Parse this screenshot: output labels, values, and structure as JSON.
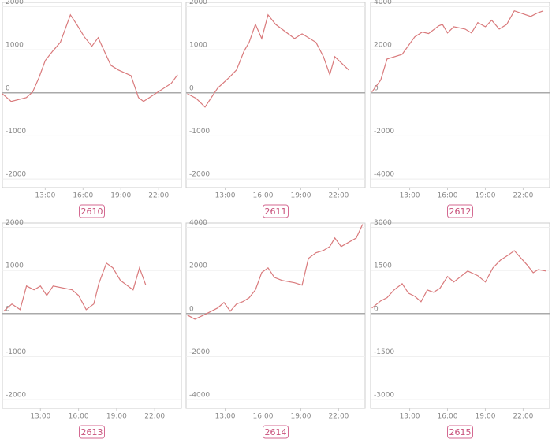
{
  "chart_data": [
    {
      "type": "line",
      "title": "2610",
      "color": "#d97a7c",
      "grid": true,
      "x": [
        9.6,
        10.3,
        11.5,
        12.0,
        12.5,
        13.0,
        13.6,
        14.2,
        15.0,
        15.5,
        16.1,
        16.7,
        17.2,
        18.2,
        18.8,
        19.8,
        20.4,
        20.8,
        23.0,
        23.5
      ],
      "values": [
        -20,
        -200,
        -110,
        20,
        350,
        750,
        970,
        1170,
        1810,
        1590,
        1300,
        1080,
        1280,
        640,
        530,
        400,
        -110,
        -200,
        220,
        420
      ],
      "xlim": [
        9.6,
        23.8
      ],
      "xticks": [
        {
          "value": 13,
          "label": "13:00"
        },
        {
          "value": 16,
          "label": "16:00"
        },
        {
          "value": 19,
          "label": "19:00"
        },
        {
          "value": 22,
          "label": "22:00"
        }
      ],
      "ylim": [
        -2200,
        2100
      ],
      "yticks": [
        2000,
        1000,
        0,
        -1000,
        -2000
      ]
    },
    {
      "type": "line",
      "title": "2611",
      "color": "#d97a7c",
      "grid": true,
      "x": [
        10.0,
        10.7,
        11.4,
        12.4,
        13.3,
        13.9,
        14.5,
        14.9,
        15.4,
        15.9,
        16.4,
        17.0,
        18.5,
        19.1,
        20.2,
        20.8,
        21.3,
        21.7,
        22.8
      ],
      "values": [
        -20,
        -130,
        -330,
        110,
        350,
        530,
        970,
        1170,
        1590,
        1260,
        1810,
        1590,
        1260,
        1370,
        1170,
        840,
        420,
        840,
        530
      ],
      "xlim": [
        9.9,
        24.1
      ],
      "xticks": [
        {
          "value": 13,
          "label": "13:00"
        },
        {
          "value": 16,
          "label": "16:00"
        },
        {
          "value": 19,
          "label": "19:00"
        },
        {
          "value": 22,
          "label": "22:00"
        }
      ],
      "ylim": [
        -2200,
        2100
      ],
      "yticks": [
        2000,
        1000,
        0,
        -1000,
        -2000
      ]
    },
    {
      "type": "line",
      "title": "2612",
      "color": "#d97a7c",
      "grid": true,
      "x": [
        10.0,
        10.7,
        11.2,
        12.4,
        13.4,
        14.0,
        14.5,
        15.3,
        15.6,
        16.0,
        16.5,
        17.4,
        17.9,
        18.4,
        19.0,
        19.5,
        20.1,
        20.7,
        21.3,
        22.6,
        23.1,
        23.6
      ],
      "values": [
        40,
        590,
        1570,
        1790,
        2600,
        2820,
        2750,
        3110,
        3180,
        2780,
        3070,
        2960,
        2780,
        3260,
        3070,
        3370,
        2960,
        3180,
        3810,
        3550,
        3700,
        3810
      ],
      "xlim": [
        9.9,
        24.1
      ],
      "xticks": [
        {
          "value": 13,
          "label": "13:00"
        },
        {
          "value": 16,
          "label": "16:00"
        },
        {
          "value": 19,
          "label": "19:00"
        },
        {
          "value": 22,
          "label": "22:00"
        }
      ],
      "ylim": [
        -4400,
        4200
      ],
      "yticks": [
        4000,
        2000,
        0,
        -2000,
        -4000
      ]
    },
    {
      "type": "line",
      "title": "2613",
      "color": "#d97a7c",
      "grid": true,
      "x": [
        10.1,
        10.75,
        11.4,
        11.9,
        12.5,
        13.0,
        13.5,
        14.0,
        15.5,
        16.0,
        16.6,
        17.2,
        17.6,
        18.2,
        18.7,
        19.3,
        20.3,
        20.8,
        21.3
      ],
      "values": [
        55,
        220,
        90,
        640,
        550,
        640,
        420,
        640,
        550,
        420,
        90,
        220,
        700,
        1170,
        1060,
        770,
        550,
        1060,
        660
      ],
      "xlim": [
        10.0,
        24.1
      ],
      "xticks": [
        {
          "value": 13,
          "label": "13:00"
        },
        {
          "value": 16,
          "label": "16:00"
        },
        {
          "value": 19,
          "label": "19:00"
        },
        {
          "value": 22,
          "label": "22:00"
        }
      ],
      "ylim": [
        -2200,
        2100
      ],
      "yticks": [
        2000,
        1000,
        0,
        -1000,
        -2000
      ]
    },
    {
      "type": "line",
      "title": "2614",
      "color": "#d97a7c",
      "grid": true,
      "x": [
        10.0,
        10.6,
        11.4,
        12.4,
        12.9,
        13.4,
        13.9,
        14.4,
        14.9,
        15.4,
        15.9,
        16.4,
        16.9,
        17.5,
        18.5,
        19.1,
        19.6,
        20.2,
        20.8,
        21.3,
        21.7,
        22.2,
        23.4,
        23.9
      ],
      "values": [
        -70,
        -260,
        -40,
        260,
        510,
        110,
        440,
        550,
        730,
        1100,
        1900,
        2120,
        1680,
        1540,
        1430,
        1320,
        2560,
        2820,
        2930,
        3110,
        3510,
        3110,
        3510,
        4140
      ],
      "xlim": [
        9.9,
        24.1
      ],
      "xticks": [
        {
          "value": 13,
          "label": "13:00"
        },
        {
          "value": 16,
          "label": "16:00"
        },
        {
          "value": 19,
          "label": "19:00"
        },
        {
          "value": 22,
          "label": "22:00"
        }
      ],
      "ylim": [
        -4400,
        4200
      ],
      "yticks": [
        4000,
        2000,
        0,
        -2000,
        -4000
      ]
    },
    {
      "type": "line",
      "title": "2615",
      "color": "#d97a7c",
      "grid": true,
      "x": [
        10.0,
        10.7,
        11.2,
        11.75,
        12.4,
        12.9,
        13.4,
        13.9,
        14.4,
        14.9,
        15.4,
        16.0,
        16.5,
        17.6,
        18.4,
        19.0,
        19.6,
        20.2,
        20.8,
        21.3,
        22.3,
        22.8,
        23.2,
        23.8
      ],
      "values": [
        190,
        440,
        550,
        820,
        1040,
        710,
        600,
        410,
        820,
        740,
        880,
        1290,
        1100,
        1480,
        1320,
        1100,
        1590,
        1860,
        2030,
        2190,
        1700,
        1420,
        1530,
        1480
      ],
      "xlim": [
        9.9,
        24.1
      ],
      "xticks": [
        {
          "value": 13,
          "label": "13:00"
        },
        {
          "value": 16,
          "label": "16:00"
        },
        {
          "value": 19,
          "label": "19:00"
        },
        {
          "value": 22,
          "label": "22:00"
        }
      ],
      "ylim": [
        -3300,
        3150
      ],
      "yticks": [
        3000,
        1500,
        0,
        -1500,
        -3000
      ]
    }
  ]
}
